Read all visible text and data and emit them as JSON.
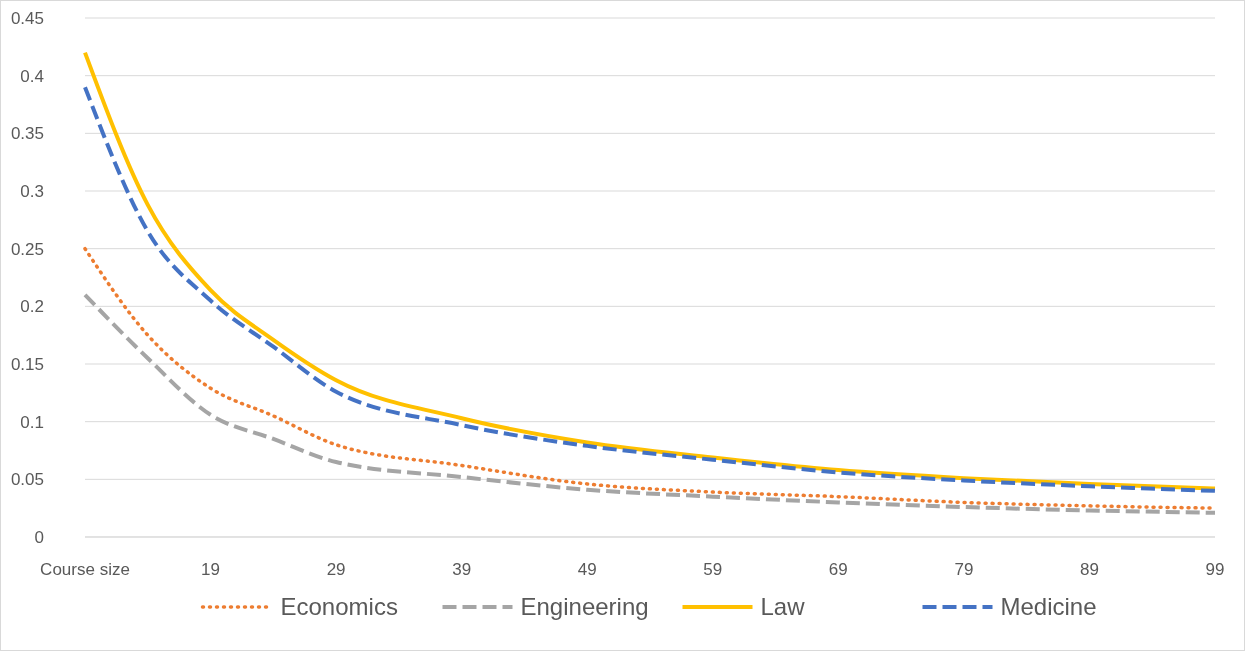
{
  "chart_data": {
    "type": "line",
    "x": [
      9,
      14,
      19,
      24,
      29,
      39,
      49,
      59,
      69,
      79,
      89,
      99
    ],
    "xlim": [
      9,
      99
    ],
    "xticks": [
      {
        "value": 9,
        "label": "Course size"
      },
      19,
      29,
      39,
      49,
      59,
      69,
      79,
      89,
      99
    ],
    "ylim": [
      0,
      0.45
    ],
    "yticks": [
      0,
      0.05,
      0.1,
      0.15,
      0.2,
      0.25,
      0.3,
      0.35,
      0.4,
      0.45
    ],
    "grid": "y",
    "legend": "bottom",
    "marker": "none",
    "series": [
      {
        "name": "Economics",
        "color": "#ed7d31",
        "line_style": "dotted",
        "values": [
          0.25,
          0.175,
          0.129,
          0.105,
          0.08,
          0.062,
          0.046,
          0.039,
          0.035,
          0.03,
          0.027,
          0.025
        ]
      },
      {
        "name": "Engineering",
        "color": "#a5a5a5",
        "line_style": "dashed",
        "values": [
          0.21,
          0.155,
          0.106,
          0.085,
          0.065,
          0.052,
          0.041,
          0.035,
          0.03,
          0.026,
          0.023,
          0.021
        ]
      },
      {
        "name": "Law",
        "color": "#ffc000",
        "line_style": "solid",
        "values": [
          0.42,
          0.288,
          0.214,
          0.171,
          0.136,
          0.103,
          0.082,
          0.069,
          0.058,
          0.051,
          0.046,
          0.042
        ]
      },
      {
        "name": "Medicine",
        "color": "#4472c4",
        "line_style": "dashed",
        "values": [
          0.39,
          0.265,
          0.205,
          0.165,
          0.126,
          0.097,
          0.079,
          0.067,
          0.056,
          0.049,
          0.044,
          0.04
        ]
      }
    ]
  }
}
